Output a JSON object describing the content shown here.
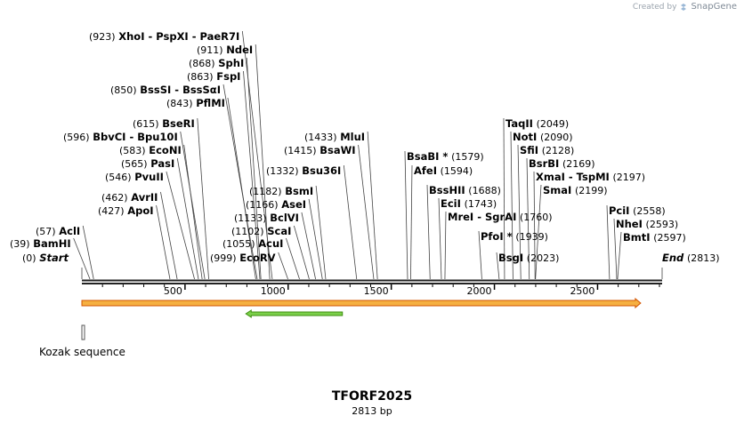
{
  "credit": {
    "created_by": "Created by",
    "brand": "SnapGene",
    "icon": "snapgene-logo-icon"
  },
  "construct": {
    "name": "TFORF2025",
    "length_label": "2813 bp",
    "length": 2813
  },
  "axis": {
    "ticks": [
      500,
      1000,
      1500,
      2000,
      2500
    ]
  },
  "enzymes": [
    {
      "name": "Start",
      "pos": 0,
      "pos_label": "(0)",
      "kind": "special"
    },
    {
      "name": "BamHI",
      "pos": 39,
      "pos_label": "(39)"
    },
    {
      "name": "AclI",
      "pos": 57,
      "pos_label": "(57)"
    },
    {
      "name": "ApoI",
      "pos": 427,
      "pos_label": "(427)"
    },
    {
      "name": "AvrII",
      "pos": 462,
      "pos_label": "(462)"
    },
    {
      "name": "PvuII",
      "pos": 546,
      "pos_label": "(546)"
    },
    {
      "name": "PasI",
      "pos": 565,
      "pos_label": "(565)"
    },
    {
      "name": "EcoNI",
      "pos": 583,
      "pos_label": "(583)"
    },
    {
      "name": "BbvCI",
      "name2": "Bpu10I",
      "pos": 596,
      "pos_label": "(596)"
    },
    {
      "name": "BseRI",
      "pos": 615,
      "pos_label": "(615)"
    },
    {
      "name": "PflMI",
      "pos": 843,
      "pos_label": "(843)"
    },
    {
      "name": "BssSI",
      "name2": "BssSαI",
      "pos": 850,
      "pos_label": "(850)"
    },
    {
      "name": "FspI",
      "pos": 863,
      "pos_label": "(863)"
    },
    {
      "name": "SphI",
      "pos": 868,
      "pos_label": "(868)"
    },
    {
      "name": "NdeI",
      "pos": 911,
      "pos_label": "(911)"
    },
    {
      "name": "XhoI",
      "name2": "PspXI",
      "name3": "PaeR7I",
      "pos": 923,
      "pos_label": "(923)"
    },
    {
      "name": "EcoRV",
      "pos": 999,
      "pos_label": "(999)"
    },
    {
      "name": "AcuI",
      "pos": 1055,
      "pos_label": "(1055)"
    },
    {
      "name": "ScaI",
      "pos": 1102,
      "pos_label": "(1102)"
    },
    {
      "name": "BclVI",
      "pos": 1133,
      "pos_label": "(1133)"
    },
    {
      "name": "AseI",
      "pos": 1166,
      "pos_label": "(1166)"
    },
    {
      "name": "BsmI",
      "pos": 1182,
      "pos_label": "(1182)"
    },
    {
      "name": "Bsu36I",
      "pos": 1332,
      "pos_label": "(1332)"
    },
    {
      "name": "BsaWI",
      "pos": 1415,
      "pos_label": "(1415)"
    },
    {
      "name": "MluI",
      "pos": 1433,
      "pos_label": "(1433)"
    },
    {
      "name": "BsaBI",
      "star": "*",
      "pos": 1579,
      "pos_label": "(1579)"
    },
    {
      "name": "AfeI",
      "pos": 1594,
      "pos_label": "(1594)"
    },
    {
      "name": "BssHII",
      "pos": 1688,
      "pos_label": "(1688)"
    },
    {
      "name": "EciI",
      "pos": 1743,
      "pos_label": "(1743)"
    },
    {
      "name": "MreI",
      "name2": "SgrAI",
      "pos": 1760,
      "pos_label": "(1760)"
    },
    {
      "name": "PfoI",
      "star": "*",
      "pos": 1939,
      "pos_label": "(1939)"
    },
    {
      "name": "BsgI",
      "pos": 2023,
      "pos_label": "(2023)"
    },
    {
      "name": "TaqII",
      "pos": 2049,
      "pos_label": "(2049)"
    },
    {
      "name": "NotI",
      "pos": 2090,
      "pos_label": "(2090)"
    },
    {
      "name": "SfiI",
      "pos": 2128,
      "pos_label": "(2128)"
    },
    {
      "name": "BsrBI",
      "pos": 2169,
      "pos_label": "(2169)"
    },
    {
      "name": "XmaI",
      "name2": "TspMI",
      "pos": 2197,
      "pos_label": "(2197)"
    },
    {
      "name": "SmaI",
      "pos": 2199,
      "pos_label": "(2199)"
    },
    {
      "name": "PciI",
      "pos": 2558,
      "pos_label": "(2558)"
    },
    {
      "name": "NheI",
      "pos": 2593,
      "pos_label": "(2593)"
    },
    {
      "name": "BmtI",
      "pos": 2597,
      "pos_label": "(2597)"
    },
    {
      "name": "End",
      "pos": 2813,
      "pos_label": "(2813)",
      "kind": "special"
    }
  ],
  "features": [
    {
      "name": "orf-forward",
      "start": 0,
      "end": 2709,
      "strand": "forward",
      "color": "#f5b041",
      "edge": "#d35400"
    },
    {
      "name": "orf-reverse",
      "start": 795,
      "end": 1263,
      "strand": "reverse",
      "color": "#7bd04a",
      "edge": "#3c8d0d"
    },
    {
      "name": "kozak",
      "start": 0,
      "end": 10,
      "color": "#cccccc"
    }
  ],
  "feature_label": "Kozak sequence",
  "colors": {
    "backbone": "#222222",
    "leader": "#444444"
  }
}
